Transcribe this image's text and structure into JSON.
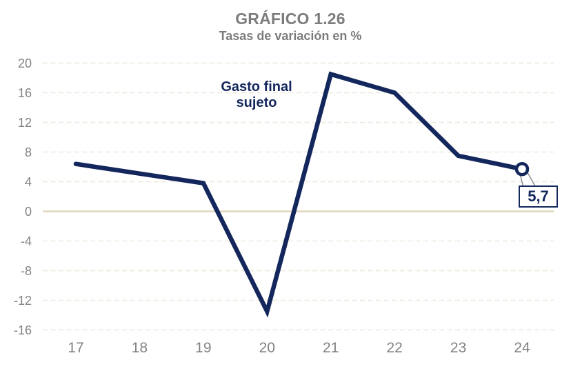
{
  "header": {
    "title": "GRÁFICO 1.26",
    "subtitle": "Tasas de variación en %"
  },
  "chart_data": {
    "type": "line",
    "title": "GRÁFICO 1.26",
    "subtitle": "Tasas de variación en %",
    "categories": [
      "17",
      "18",
      "19",
      "20",
      "21",
      "22",
      "23",
      "24"
    ],
    "series": [
      {
        "name": "Gasto final sujeto",
        "values": [
          6.4,
          5.1,
          3.8,
          -13.5,
          18.5,
          16.0,
          7.5,
          5.7
        ]
      }
    ],
    "y_ticks": [
      20,
      16,
      12,
      8,
      4,
      0,
      -4,
      -8,
      -12,
      -16
    ],
    "ylim": [
      -18,
      22
    ],
    "xlabel": "",
    "ylabel": "",
    "grid": "horizontal dashed gridlines, solid zero line",
    "legend_position": "none (inline series annotation on chart)",
    "annotations": {
      "series_label": "Gasto final sujeto",
      "last_point_label": "5,7",
      "last_point_marker": "open-circle"
    },
    "colors": {
      "line": "#13275c",
      "axis_text": "#828282",
      "title_text": "#7c7c7c",
      "gridline": "#ede8db",
      "zero_line": "#dfd6bc",
      "callout_pointer_outline": "#8c8c8c"
    }
  }
}
